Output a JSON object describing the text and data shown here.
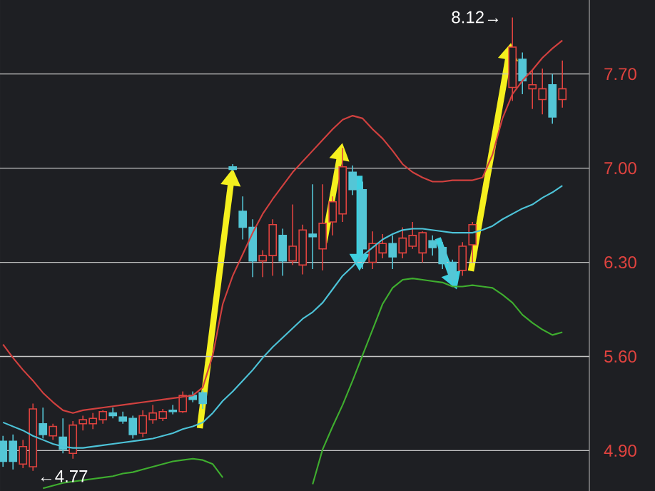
{
  "chart_data": {
    "type": "candlestick",
    "categories": [
      null,
      null,
      null,
      null,
      null,
      null,
      null,
      null,
      null,
      null,
      null,
      null,
      null,
      null,
      null,
      null,
      null,
      null,
      null,
      null,
      null,
      null,
      null,
      null,
      null,
      null,
      null,
      null,
      null,
      null,
      null,
      null,
      null,
      null,
      null,
      null,
      null,
      null,
      null,
      null,
      null,
      null,
      null,
      null,
      null,
      null,
      null,
      null,
      null,
      null,
      null,
      null,
      null,
      null,
      null,
      null,
      null
    ],
    "ohlc": [
      [
        4.97,
        5.01,
        4.78,
        4.82
      ],
      [
        4.97,
        5.02,
        4.76,
        4.82
      ],
      [
        4.8,
        4.98,
        4.77,
        4.93
      ],
      [
        4.78,
        5.25,
        4.75,
        5.21
      ],
      [
        5.1,
        5.22,
        4.99,
        5.02
      ],
      [
        5.01,
        5.1,
        4.98,
        5.08
      ],
      [
        5.0,
        5.14,
        4.88,
        4.91
      ],
      [
        4.88,
        5.12,
        4.84,
        5.09
      ],
      [
        5.1,
        5.16,
        5.05,
        5.13
      ],
      [
        5.1,
        5.18,
        5.06,
        5.14
      ],
      [
        5.13,
        5.2,
        5.1,
        5.19
      ],
      [
        5.18,
        5.22,
        5.14,
        5.16
      ],
      [
        5.15,
        5.19,
        5.1,
        5.12
      ],
      [
        5.14,
        5.16,
        4.99,
        5.02
      ],
      [
        5.03,
        5.2,
        5.0,
        5.16
      ],
      [
        5.13,
        5.24,
        5.1,
        5.18
      ],
      [
        5.14,
        5.21,
        5.12,
        5.19
      ],
      [
        5.2,
        5.24,
        5.17,
        5.19
      ],
      [
        5.19,
        5.34,
        5.18,
        5.31
      ],
      [
        5.31,
        5.34,
        5.26,
        5.28
      ],
      [
        5.33,
        5.35,
        5.21,
        5.25
      ],
      null,
      null,
      [
        7.01,
        7.03,
        6.98,
        6.99
      ],
      [
        6.68,
        6.79,
        6.47,
        6.56
      ],
      [
        6.56,
        6.62,
        6.19,
        6.31
      ],
      [
        6.31,
        6.39,
        6.19,
        6.35
      ],
      [
        6.35,
        6.62,
        6.2,
        6.58
      ],
      [
        6.5,
        6.55,
        6.2,
        6.31
      ],
      [
        6.31,
        6.73,
        6.28,
        6.42
      ],
      [
        6.28,
        6.58,
        6.21,
        6.54
      ],
      [
        6.51,
        6.88,
        6.25,
        6.49
      ],
      [
        6.4,
        6.88,
        6.24,
        6.59
      ],
      [
        6.6,
        6.79,
        6.5,
        6.75
      ],
      [
        6.66,
        7.15,
        6.6,
        7.01
      ],
      [
        6.97,
        7.02,
        6.8,
        6.84
      ],
      [
        6.84,
        6.9,
        6.25,
        6.4
      ],
      [
        6.3,
        6.53,
        6.25,
        6.44
      ],
      [
        6.37,
        6.51,
        6.33,
        6.44
      ],
      [
        6.44,
        6.5,
        6.25,
        6.34
      ],
      [
        6.37,
        6.56,
        6.33,
        6.48
      ],
      [
        6.42,
        6.6,
        6.4,
        6.5
      ],
      [
        6.37,
        6.53,
        6.3,
        6.52
      ],
      [
        6.46,
        6.5,
        6.35,
        6.41
      ],
      [
        6.41,
        6.45,
        6.25,
        6.29
      ],
      [
        6.3,
        6.32,
        6.12,
        6.17
      ],
      [
        6.24,
        6.45,
        6.2,
        6.42
      ],
      [
        6.43,
        6.6,
        6.3,
        6.58
      ],
      null,
      null,
      null,
      [
        7.6,
        8.12,
        7.5,
        7.9
      ],
      [
        7.81,
        7.86,
        7.55,
        7.65
      ],
      [
        7.59,
        7.73,
        7.44,
        7.62
      ],
      [
        7.51,
        7.74,
        7.4,
        7.59
      ],
      [
        7.62,
        7.7,
        7.33,
        7.38
      ],
      [
        7.51,
        7.8,
        7.45,
        7.59
      ]
    ],
    "series": [
      {
        "type": "line",
        "color": "#d2413f",
        "values": [
          5.69,
          5.59,
          5.5,
          5.42,
          5.33,
          5.26,
          5.2,
          5.18,
          5.2,
          5.21,
          5.22,
          5.23,
          5.24,
          5.25,
          5.26,
          5.27,
          5.28,
          5.29,
          5.3,
          5.31,
          5.37,
          5.61,
          5.99,
          6.2,
          6.36,
          6.52,
          6.66,
          6.77,
          6.87,
          6.97,
          7.05,
          7.13,
          7.21,
          7.29,
          7.36,
          7.39,
          7.37,
          7.29,
          7.22,
          7.13,
          7.03,
          6.97,
          6.93,
          6.9,
          6.9,
          6.91,
          6.91,
          6.91,
          6.93,
          7.1,
          7.37,
          7.55,
          7.65,
          7.73,
          7.82,
          7.89,
          7.95
        ]
      },
      {
        "type": "line",
        "color": "#4dc3d8",
        "values": [
          5.11,
          5.08,
          5.05,
          5.01,
          4.98,
          4.95,
          4.93,
          4.92,
          4.92,
          4.93,
          4.94,
          4.95,
          4.96,
          4.97,
          4.98,
          4.99,
          5.01,
          5.03,
          5.06,
          5.08,
          5.11,
          5.18,
          5.27,
          5.34,
          5.42,
          5.5,
          5.59,
          5.67,
          5.74,
          5.81,
          5.88,
          5.93,
          6.0,
          6.1,
          6.2,
          6.27,
          6.35,
          6.41,
          6.47,
          6.51,
          6.54,
          6.55,
          6.55,
          6.54,
          6.53,
          6.52,
          6.52,
          6.52,
          6.54,
          6.57,
          6.62,
          6.66,
          6.7,
          6.73,
          6.78,
          6.82,
          6.87
        ]
      },
      {
        "type": "line",
        "color": "#3fae2f",
        "values": [
          null,
          null,
          null,
          null,
          4.62,
          4.64,
          4.66,
          4.67,
          4.68,
          4.69,
          4.7,
          4.71,
          4.73,
          4.74,
          4.76,
          4.78,
          4.8,
          4.82,
          4.83,
          4.84,
          4.83,
          4.8,
          4.7,
          null,
          null,
          null,
          null,
          null,
          null,
          null,
          null,
          4.65,
          4.91,
          5.08,
          5.24,
          5.42,
          5.61,
          5.8,
          5.99,
          6.11,
          6.17,
          6.18,
          6.17,
          6.16,
          6.15,
          6.12,
          6.12,
          6.13,
          6.12,
          6.11,
          6.06,
          6.0,
          5.91,
          5.85,
          5.8,
          5.76,
          5.78
        ]
      }
    ],
    "ylim": [
      4.6,
      8.25
    ],
    "yticks": [
      {
        "value": 4.9,
        "label": "4.90"
      },
      {
        "value": 5.6,
        "label": "5.60"
      },
      {
        "value": 6.3,
        "label": "6.30"
      },
      {
        "value": 7.0,
        "label": "7.00"
      },
      {
        "value": 7.7,
        "label": "7.70"
      }
    ],
    "grid": "y",
    "tick_labels": "y",
    "annotations": [
      "8.12→",
      "←4.77"
    ]
  }
}
